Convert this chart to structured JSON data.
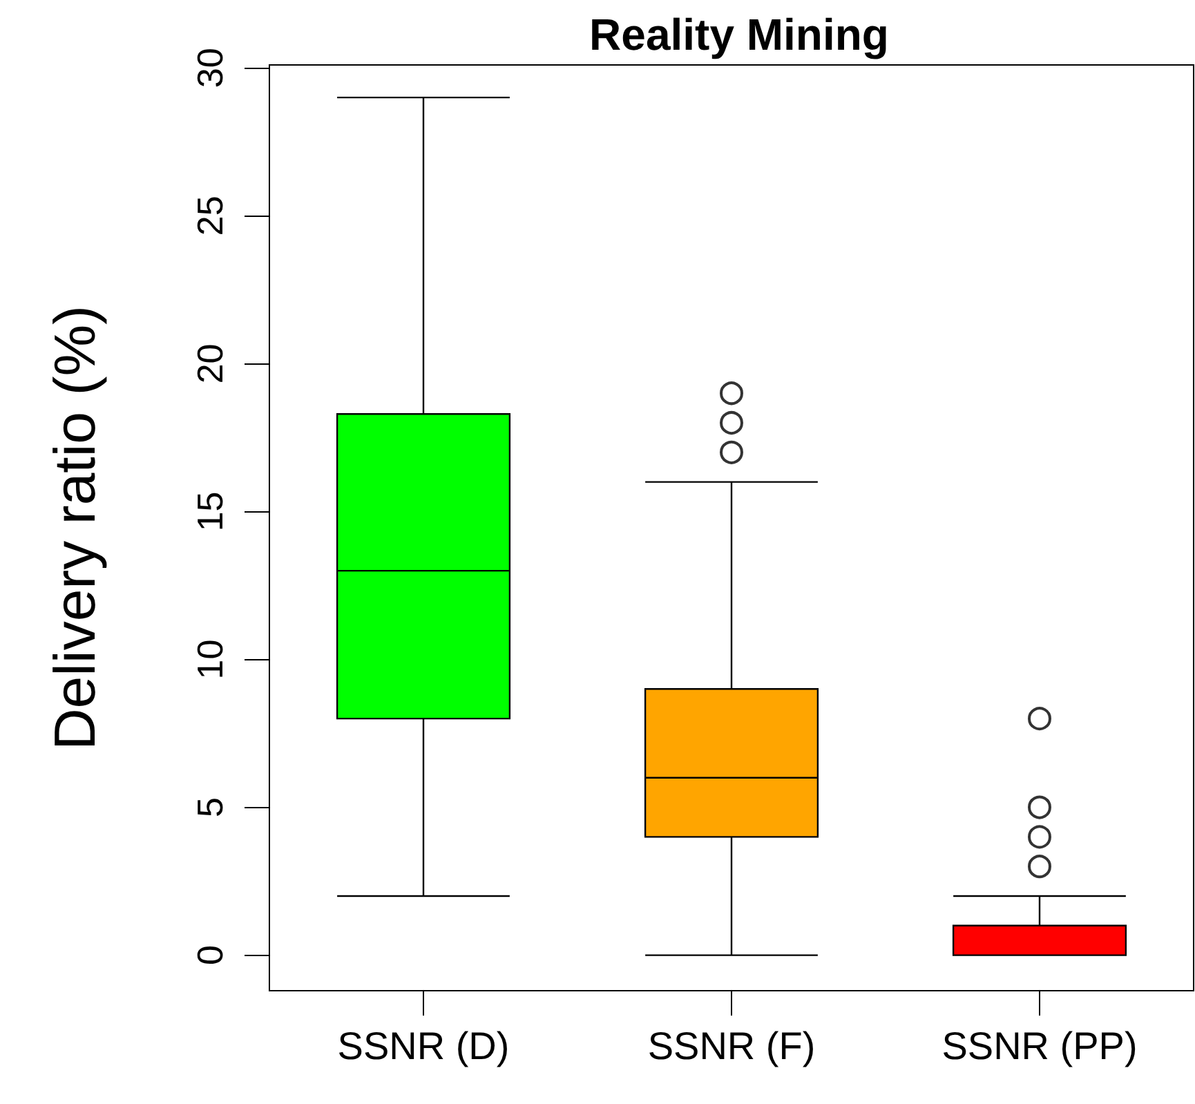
{
  "chart_data": {
    "type": "box",
    "title": "Reality Mining",
    "ylabel": "Delivery ratio (%)",
    "categories": [
      "SSNR (D)",
      "SSNR (F)",
      "SSNR (PP)"
    ],
    "colors": [
      "#00ff00",
      "#ffa500",
      "#ff0000"
    ],
    "boxes": [
      {
        "low": 2,
        "q1": 8,
        "median": 13,
        "q3": 18.3,
        "high": 29
      },
      {
        "low": 0,
        "q1": 4,
        "median": 6,
        "q3": 9,
        "high": 16,
        "outliers": [
          17,
          18,
          19
        ]
      },
      {
        "low": 0,
        "q1": 0,
        "median": 0,
        "q3": 1,
        "high": 2,
        "outliers": [
          3,
          4,
          5,
          8
        ]
      }
    ],
    "ylim": [
      -1.2,
      30.1
    ],
    "yticks": [
      0,
      5,
      10,
      15,
      20,
      25,
      30
    ],
    "grid": false
  }
}
